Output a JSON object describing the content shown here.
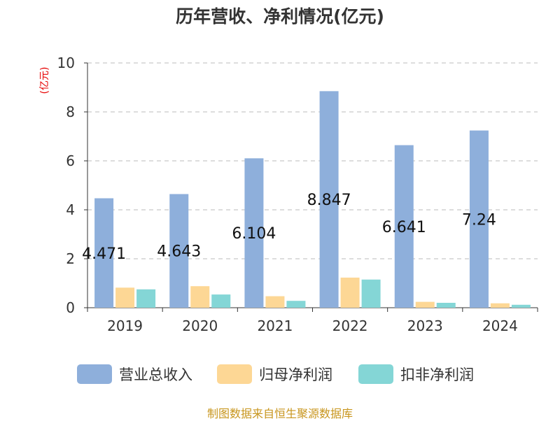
{
  "chart_data": {
    "type": "bar",
    "title": "历年营收、净利情况(亿元)",
    "ylabel": "(亿元)",
    "xlabel": "",
    "ylim": [
      0,
      10
    ],
    "yticks": [
      0,
      2,
      4,
      6,
      8,
      10
    ],
    "grid": true,
    "legend_position": "bottom",
    "categories": [
      "2019",
      "2020",
      "2021",
      "2022",
      "2023",
      "2024"
    ],
    "series": [
      {
        "name": "营业总收入",
        "color": "#8eafdb",
        "values": [
          4.471,
          4.643,
          6.104,
          8.847,
          6.641,
          7.24
        ],
        "labels": [
          "4.471",
          "4.643",
          "6.104",
          "8.847",
          "6.641",
          "7.24"
        ]
      },
      {
        "name": "归母净利润",
        "color": "#fdd795",
        "values": [
          0.82,
          0.88,
          0.47,
          1.23,
          0.24,
          0.18
        ]
      },
      {
        "name": "扣非净利润",
        "color": "#84d6d6",
        "values": [
          0.75,
          0.54,
          0.28,
          1.15,
          0.2,
          0.12
        ]
      }
    ]
  },
  "footer": {
    "source": "制图数据来自恒生聚源数据库"
  }
}
